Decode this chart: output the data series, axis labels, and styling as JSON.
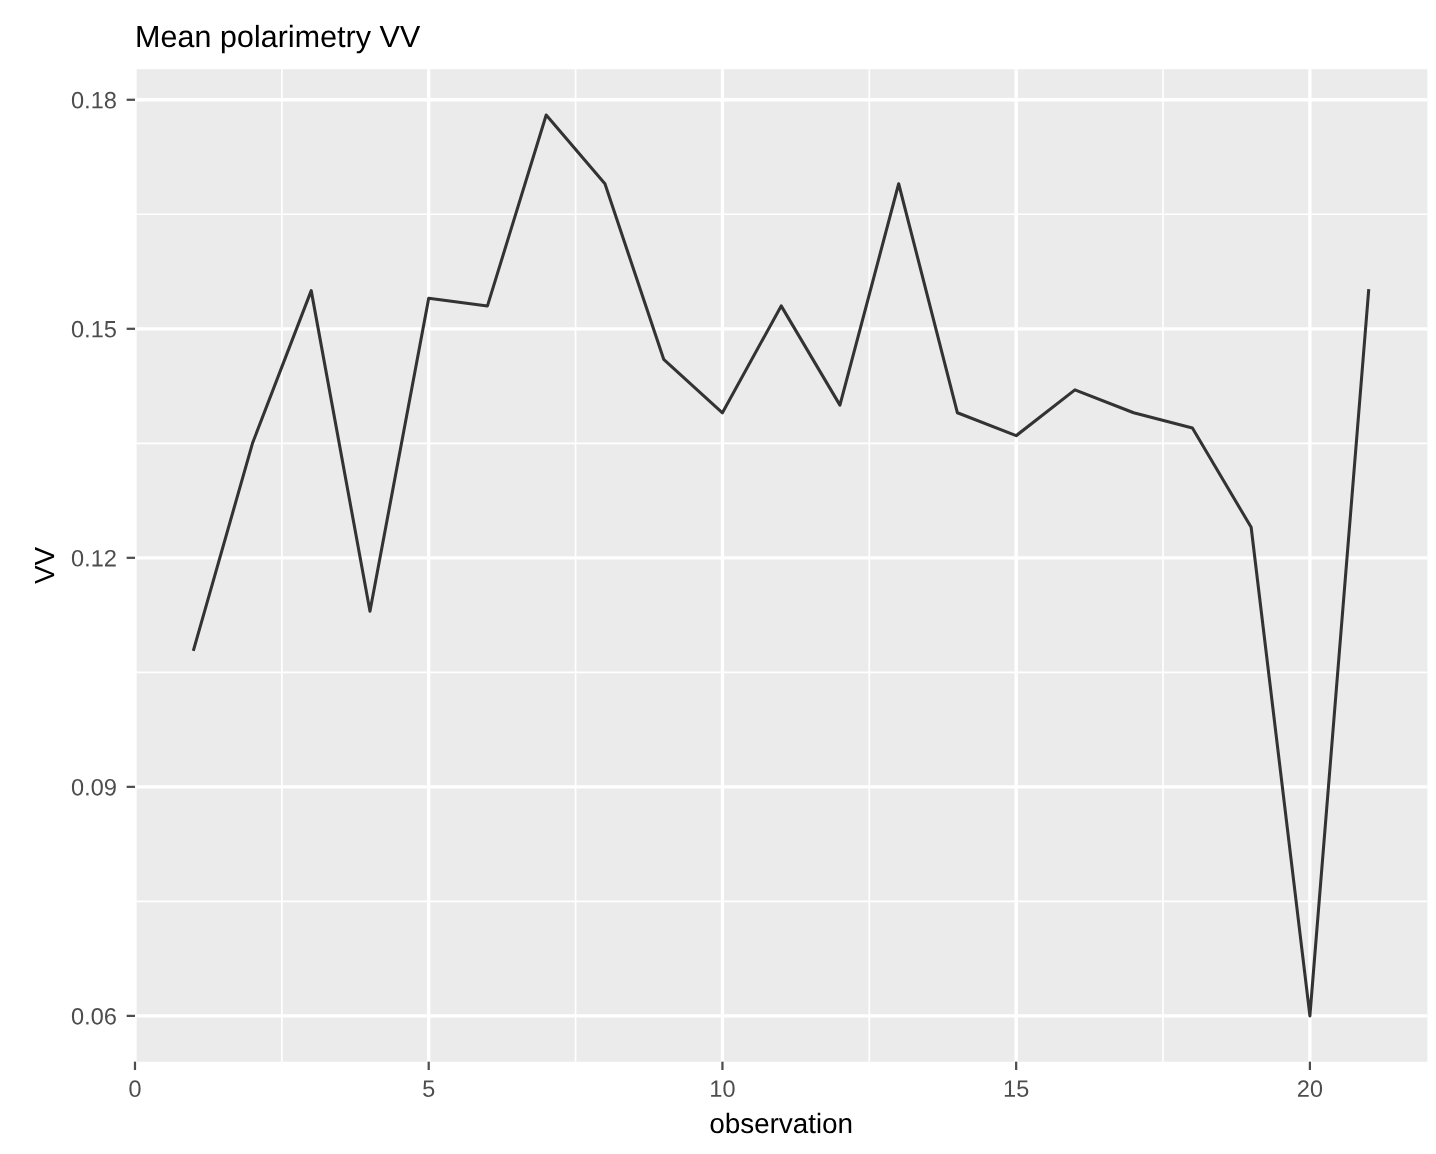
{
  "chart_data": {
    "type": "line",
    "title": "Mean polarimetry VV",
    "xlabel": "observation",
    "ylabel": "VV",
    "x": [
      1,
      2,
      3,
      4,
      5,
      6,
      7,
      8,
      9,
      10,
      11,
      12,
      13,
      14,
      15,
      16,
      17,
      18,
      19,
      20,
      21
    ],
    "series": [
      {
        "color": "#333333",
        "values": [
          0.108,
          0.135,
          0.155,
          0.113,
          0.154,
          0.153,
          0.178,
          0.169,
          0.146,
          0.139,
          0.153,
          0.14,
          0.169,
          0.139,
          0.136,
          0.142,
          0.139,
          0.137,
          0.124,
          0.06,
          0.155
        ]
      }
    ],
    "xlim": [
      0,
      22
    ],
    "ylim": [
      0.054,
      0.184
    ],
    "xticks": [
      0,
      5,
      10,
      15,
      20
    ],
    "yticks": [
      {
        "value": 0.06,
        "label": "0.06"
      },
      {
        "value": 0.09,
        "label": "0.09"
      },
      {
        "value": 0.12,
        "label": "0.12"
      },
      {
        "value": 0.15,
        "label": "0.15"
      },
      {
        "value": 0.18,
        "label": "0.18"
      }
    ],
    "grid": true,
    "line_style": "solid"
  }
}
